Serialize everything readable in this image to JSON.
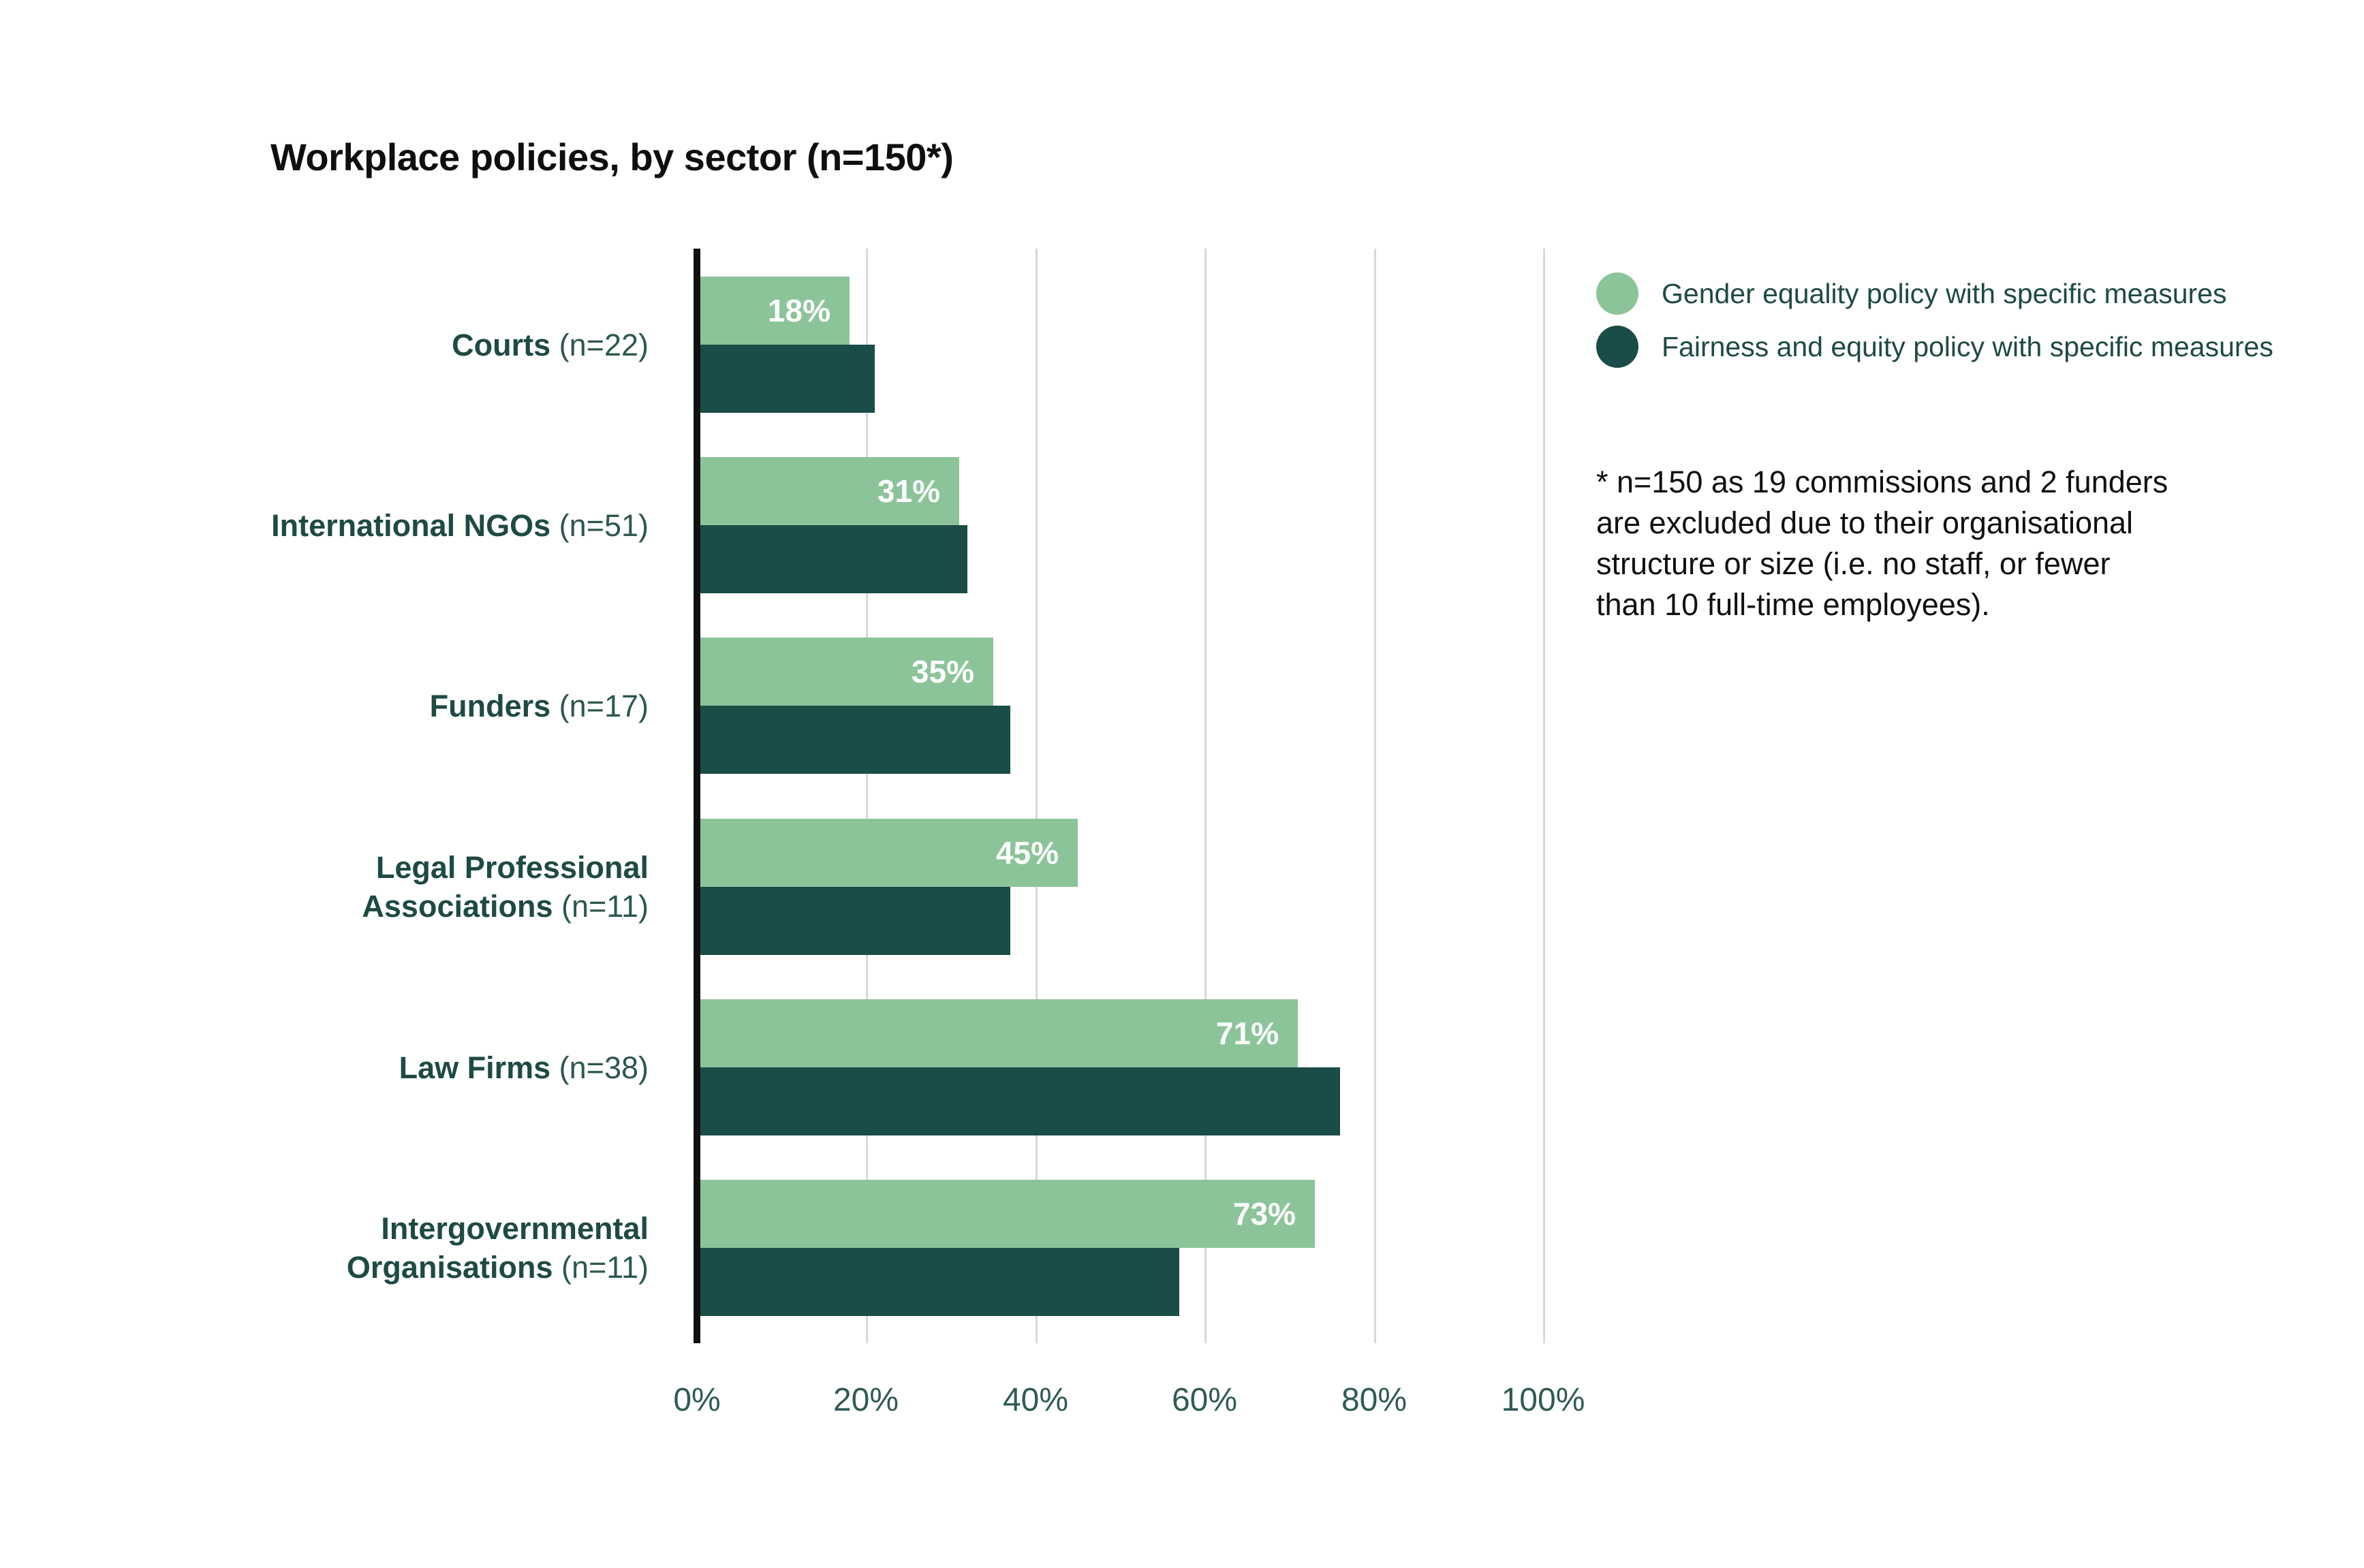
{
  "title": "Workplace policies, by sector (n=150*)",
  "legend": {
    "items": [
      {
        "label": "Gender equality policy with specific measures",
        "color": "#8cc49a"
      },
      {
        "label": "Fairness and equity policy with specific measures",
        "color": "#1a4d47"
      }
    ]
  },
  "footnote": "* n=150 as 19 commissions and 2 funders\nare excluded due to their organisational\nstructure or size (i.e. no staff, or fewer\nthan 10 full-time employees).",
  "axis": {
    "ticks": [
      "0%",
      "20%",
      "40%",
      "60%",
      "80%",
      "100%"
    ],
    "min": 0,
    "max": 100
  },
  "colors": {
    "light_green": "#8cc49a",
    "dark_green": "#1a4d47",
    "category_text": "#1e4a44",
    "tick_text": "#2f5b55",
    "gridline": "#d8d8d8",
    "axis_line": "#101010",
    "title_text": "#0f0f0f",
    "bar_value_text": "#ffffff"
  },
  "chart_data": {
    "type": "bar",
    "orientation": "horizontal",
    "title": "Workplace policies, by sector (n=150*)",
    "xlabel": "",
    "ylabel": "",
    "xlim": [
      0,
      100
    ],
    "x_tick_labels": [
      "0%",
      "20%",
      "40%",
      "60%",
      "80%",
      "100%"
    ],
    "grid": "vertical",
    "legend_position": "top-right",
    "categories": [
      {
        "name": "Courts",
        "n_label": "(n=22)"
      },
      {
        "name": "International NGOs",
        "n_label": "(n=51)"
      },
      {
        "name": "Funders",
        "n_label": "(n=17)"
      },
      {
        "name": "Legal Professional Associations",
        "n_label": "(n=11)"
      },
      {
        "name": "Law Firms",
        "n_label": "(n=38)"
      },
      {
        "name": "Intergovernmental Organisations",
        "n_label": "(n=11)"
      }
    ],
    "series": [
      {
        "name": "Gender equality policy with specific measures",
        "color": "#8cc49a",
        "values": [
          18,
          31,
          35,
          45,
          71,
          73
        ],
        "value_labels": [
          "18%",
          "31%",
          "35%",
          "45%",
          "71%",
          "73%"
        ],
        "labels_visible": true
      },
      {
        "name": "Fairness and equity policy with specific measures",
        "color": "#1a4d47",
        "values": [
          21,
          32,
          37,
          37,
          76,
          57
        ],
        "value_labels": [],
        "labels_visible": false
      }
    ]
  }
}
